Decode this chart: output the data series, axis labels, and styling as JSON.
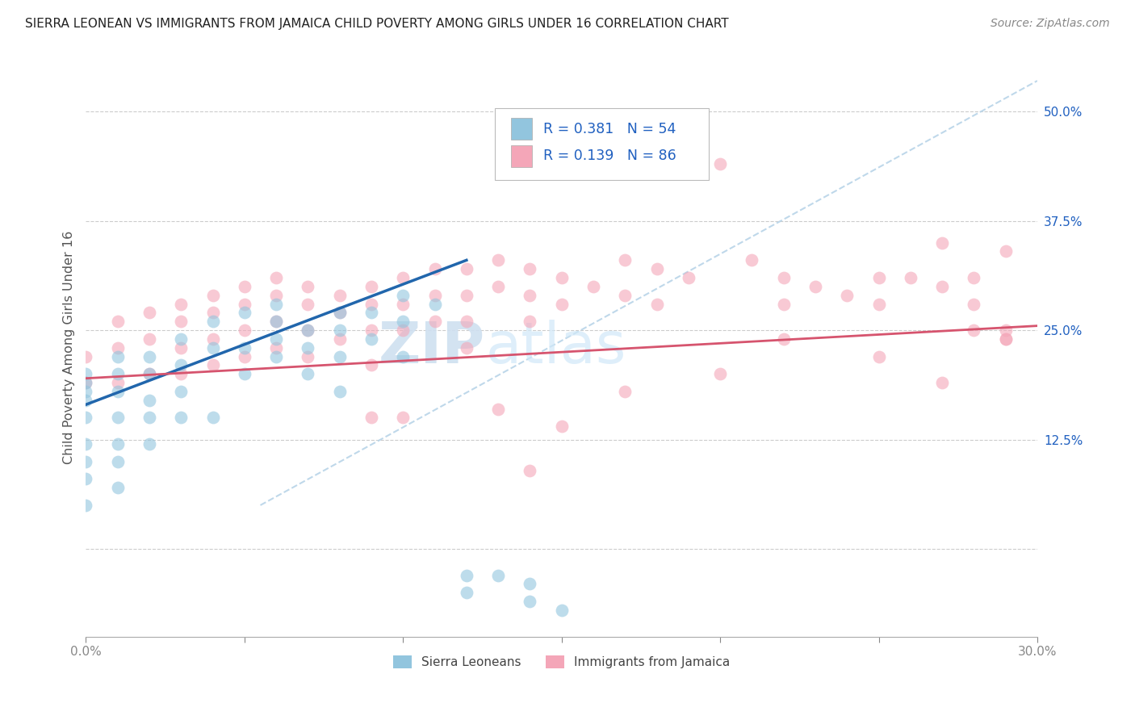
{
  "title": "SIERRA LEONEAN VS IMMIGRANTS FROM JAMAICA CHILD POVERTY AMONG GIRLS UNDER 16 CORRELATION CHART",
  "source": "Source: ZipAtlas.com",
  "ylabel": "Child Poverty Among Girls Under 16",
  "ytick_values": [
    0.0,
    0.125,
    0.25,
    0.375,
    0.5
  ],
  "ytick_labels_right": [
    "",
    "12.5%",
    "25.0%",
    "37.5%",
    "50.0%"
  ],
  "xmin": 0.0,
  "xmax": 0.3,
  "ymin": -0.1,
  "ymax": 0.56,
  "legend1_R": "0.381",
  "legend1_N": "54",
  "legend2_R": "0.139",
  "legend2_N": "86",
  "blue_color": "#92c5de",
  "pink_color": "#f4a6b8",
  "line_blue": "#2166ac",
  "line_pink": "#d6546e",
  "line_dashed_color": "#b8d4e8",
  "watermark_color": "#cfe0f0",
  "legend_text_color": "#2060c0",
  "legend_label_blue": "Sierra Leoneans",
  "legend_label_pink": "Immigrants from Jamaica",
  "blue_x": [
    0.0,
    0.0,
    0.0,
    0.0,
    0.0,
    0.0,
    0.0,
    0.0,
    0.0,
    0.01,
    0.01,
    0.01,
    0.01,
    0.01,
    0.01,
    0.01,
    0.02,
    0.02,
    0.02,
    0.02,
    0.02,
    0.03,
    0.03,
    0.03,
    0.03,
    0.04,
    0.04,
    0.04,
    0.05,
    0.05,
    0.05,
    0.06,
    0.06,
    0.06,
    0.06,
    0.07,
    0.07,
    0.07,
    0.08,
    0.08,
    0.08,
    0.08,
    0.09,
    0.09,
    0.1,
    0.1,
    0.1,
    0.11,
    0.12,
    0.12,
    0.13,
    0.14,
    0.14,
    0.15
  ],
  "blue_y": [
    0.2,
    0.19,
    0.18,
    0.17,
    0.15,
    0.12,
    0.1,
    0.08,
    0.05,
    0.22,
    0.2,
    0.18,
    0.15,
    0.12,
    0.1,
    0.07,
    0.22,
    0.2,
    0.17,
    0.15,
    0.12,
    0.24,
    0.21,
    0.18,
    0.15,
    0.26,
    0.23,
    0.15,
    0.27,
    0.23,
    0.2,
    0.28,
    0.26,
    0.24,
    0.22,
    0.25,
    0.23,
    0.2,
    0.27,
    0.25,
    0.22,
    0.18,
    0.27,
    0.24,
    0.29,
    0.26,
    0.22,
    0.28,
    -0.03,
    -0.05,
    -0.03,
    -0.04,
    -0.06,
    -0.07
  ],
  "pink_x": [
    0.0,
    0.0,
    0.01,
    0.01,
    0.01,
    0.02,
    0.02,
    0.02,
    0.03,
    0.03,
    0.03,
    0.03,
    0.04,
    0.04,
    0.04,
    0.04,
    0.05,
    0.05,
    0.05,
    0.05,
    0.06,
    0.06,
    0.06,
    0.06,
    0.07,
    0.07,
    0.07,
    0.07,
    0.08,
    0.08,
    0.08,
    0.09,
    0.09,
    0.09,
    0.09,
    0.1,
    0.1,
    0.1,
    0.11,
    0.11,
    0.11,
    0.12,
    0.12,
    0.12,
    0.12,
    0.13,
    0.13,
    0.14,
    0.14,
    0.14,
    0.15,
    0.15,
    0.16,
    0.17,
    0.17,
    0.18,
    0.18,
    0.19,
    0.2,
    0.21,
    0.22,
    0.22,
    0.23,
    0.24,
    0.25,
    0.25,
    0.26,
    0.27,
    0.27,
    0.28,
    0.28,
    0.29,
    0.29,
    0.29,
    0.09,
    0.1,
    0.13,
    0.15,
    0.17,
    0.2,
    0.22,
    0.25,
    0.27,
    0.29,
    0.14,
    0.28
  ],
  "pink_y": [
    0.22,
    0.19,
    0.26,
    0.23,
    0.19,
    0.27,
    0.24,
    0.2,
    0.28,
    0.26,
    0.23,
    0.2,
    0.29,
    0.27,
    0.24,
    0.21,
    0.3,
    0.28,
    0.25,
    0.22,
    0.31,
    0.29,
    0.26,
    0.23,
    0.3,
    0.28,
    0.25,
    0.22,
    0.29,
    0.27,
    0.24,
    0.3,
    0.28,
    0.25,
    0.21,
    0.31,
    0.28,
    0.25,
    0.32,
    0.29,
    0.26,
    0.32,
    0.29,
    0.26,
    0.23,
    0.33,
    0.3,
    0.32,
    0.29,
    0.26,
    0.31,
    0.28,
    0.3,
    0.33,
    0.29,
    0.32,
    0.28,
    0.31,
    0.44,
    0.33,
    0.31,
    0.28,
    0.3,
    0.29,
    0.31,
    0.28,
    0.31,
    0.3,
    0.35,
    0.31,
    0.28,
    0.34,
    0.25,
    0.24,
    0.15,
    0.15,
    0.16,
    0.14,
    0.18,
    0.2,
    0.24,
    0.22,
    0.19,
    0.24,
    0.09,
    0.25
  ],
  "blue_line_x": [
    0.0,
    0.12
  ],
  "blue_line_y": [
    0.165,
    0.33
  ],
  "pink_line_x": [
    0.0,
    0.3
  ],
  "pink_line_y": [
    0.195,
    0.255
  ],
  "dash_line_x": [
    0.055,
    0.3
  ],
  "dash_line_y": [
    0.05,
    0.535
  ]
}
